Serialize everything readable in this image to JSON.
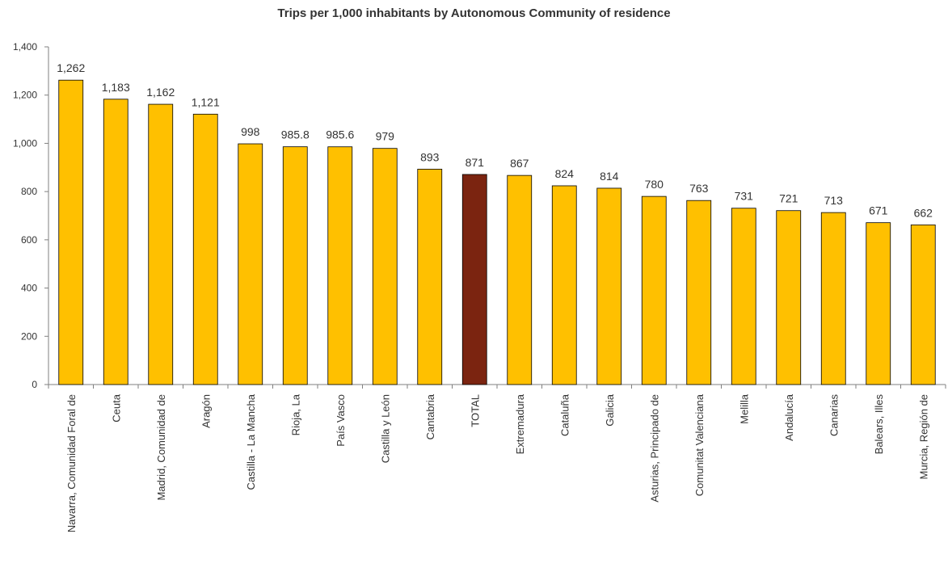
{
  "chart_data": {
    "type": "bar",
    "title": "Trips per 1,000 inhabitants by Autonomous Community of residence",
    "xlabel": "",
    "ylabel": "",
    "ylim": [
      0,
      1400
    ],
    "yticks": [
      0,
      200,
      400,
      600,
      800,
      1000,
      1200,
      1400
    ],
    "ytick_labels": [
      "0",
      "200",
      "400",
      "600",
      "800",
      "1,000",
      "1,200",
      "1,400"
    ],
    "grid": false,
    "legend": "none",
    "categories": [
      "Navarra, Comunidad Foral de",
      "Ceuta",
      "Madrid, Comunidad de",
      "Aragón",
      "Castilla - La Mancha",
      "Rioja, La",
      "País Vasco",
      "Castilla y León",
      "Cantabria",
      "TOTAL",
      "Extremadura",
      "Cataluña",
      "Galicia",
      "Asturias, Principado de",
      "Comunitat Valenciana",
      "Melilla",
      "Andalucía",
      "Canarias",
      "Balears, Illes",
      "Murcia, Región de"
    ],
    "values": [
      1262,
      1183,
      1162,
      1121,
      998,
      985.8,
      985.6,
      979,
      893,
      871,
      867,
      824,
      814,
      780,
      763,
      731,
      721,
      713,
      671,
      662
    ],
    "data_labels": [
      "1,262",
      "1,183",
      "1,162",
      "1,121",
      "998",
      "985.8",
      "985.6",
      "979",
      "893",
      "871",
      "867",
      "824",
      "814",
      "780",
      "763",
      "731",
      "721",
      "713",
      "671",
      "662"
    ],
    "colors": {
      "bar": "#FFC000",
      "highlight": "#7B2410",
      "bar_outline": "#000000",
      "axis": "#808080",
      "text": "#333333"
    },
    "highlight_category": "TOTAL"
  }
}
